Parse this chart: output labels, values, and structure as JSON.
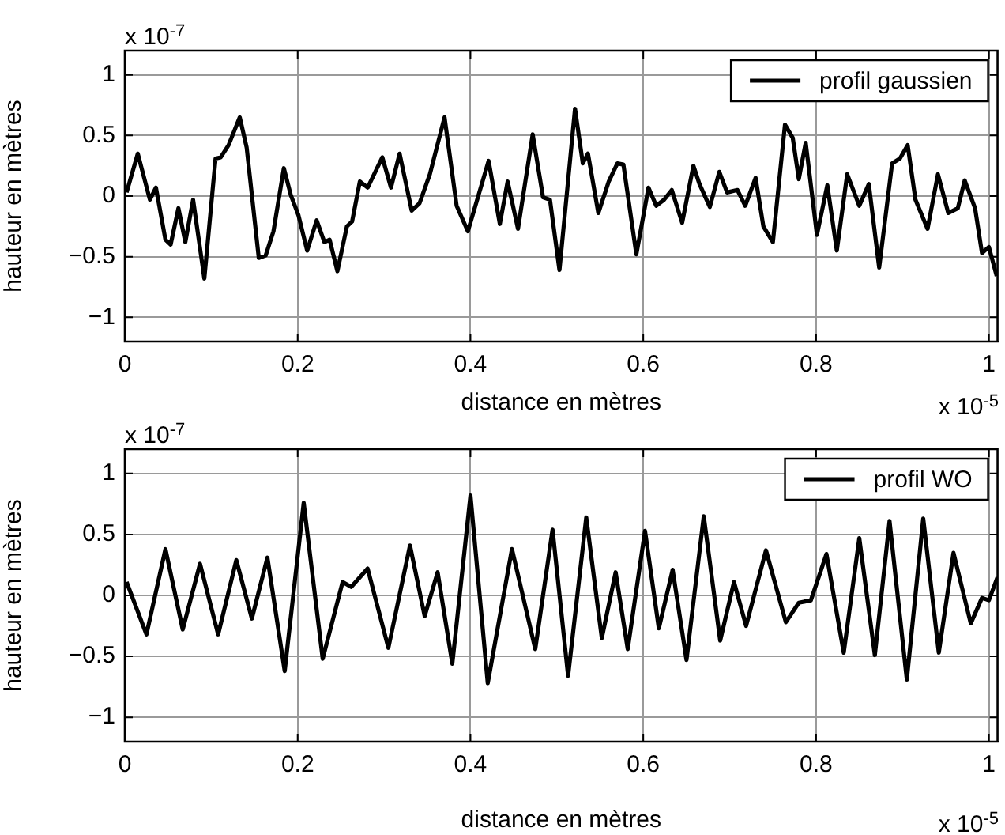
{
  "chart_data": [
    {
      "type": "line",
      "xlabel": "distance en mètres",
      "ylabel": "hauteur en mètres",
      "xlim": [
        0,
        1.01
      ],
      "ylim": [
        -1.2,
        1.2
      ],
      "xticks": [
        0,
        0.2,
        0.4,
        0.6,
        0.8,
        1
      ],
      "yticks": [
        -1,
        -0.5,
        0,
        0.5,
        1
      ],
      "grid": true,
      "legend": "top right",
      "line_style": "solid",
      "marker": "none",
      "annotations": [
        "x 10$^{-7}$",
        "x 10$^{-5}$"
      ],
      "series": [
        {
          "name": "profil gaussien",
          "color": "#000000",
          "x": [
            0.002,
            0.015,
            0.029,
            0.036,
            0.047,
            0.053,
            0.062,
            0.07,
            0.079,
            0.092,
            0.105,
            0.111,
            0.12,
            0.133,
            0.141,
            0.155,
            0.163,
            0.172,
            0.184,
            0.192,
            0.201,
            0.211,
            0.222,
            0.231,
            0.237,
            0.246,
            0.257,
            0.263,
            0.272,
            0.281,
            0.298,
            0.308,
            0.318,
            0.332,
            0.341,
            0.353,
            0.37,
            0.384,
            0.397,
            0.421,
            0.434,
            0.443,
            0.455,
            0.472,
            0.484,
            0.492,
            0.503,
            0.521,
            0.53,
            0.536,
            0.548,
            0.56,
            0.57,
            0.577,
            0.592,
            0.606,
            0.615,
            0.624,
            0.633,
            0.645,
            0.658,
            0.665,
            0.677,
            0.688,
            0.697,
            0.709,
            0.718,
            0.73,
            0.739,
            0.75,
            0.764,
            0.773,
            0.78,
            0.788,
            0.801,
            0.813,
            0.824,
            0.836,
            0.85,
            0.861,
            0.873,
            0.888,
            0.897,
            0.906,
            0.915,
            0.929,
            0.941,
            0.953,
            0.964,
            0.972,
            0.984,
            0.992,
            1.0,
            1.009
          ],
          "values": [
            0.03,
            0.35,
            -0.03,
            0.07,
            -0.36,
            -0.4,
            -0.1,
            -0.38,
            -0.03,
            -0.68,
            0.31,
            0.32,
            0.42,
            0.65,
            0.4,
            -0.51,
            -0.49,
            -0.29,
            0.23,
            0.01,
            -0.16,
            -0.45,
            -0.2,
            -0.38,
            -0.36,
            -0.62,
            -0.25,
            -0.21,
            0.12,
            0.07,
            0.32,
            0.07,
            0.35,
            -0.12,
            -0.06,
            0.18,
            0.65,
            -0.08,
            -0.29,
            0.29,
            -0.23,
            0.12,
            -0.27,
            0.51,
            -0.01,
            -0.03,
            -0.61,
            0.72,
            0.27,
            0.35,
            -0.14,
            0.12,
            0.27,
            0.26,
            -0.48,
            0.07,
            -0.08,
            -0.03,
            0.05,
            -0.22,
            0.25,
            0.1,
            -0.09,
            0.2,
            0.03,
            0.05,
            -0.08,
            0.15,
            -0.25,
            -0.38,
            0.59,
            0.48,
            0.14,
            0.44,
            -0.32,
            0.09,
            -0.45,
            0.18,
            -0.08,
            0.1,
            -0.59,
            0.27,
            0.31,
            0.42,
            -0.03,
            -0.27,
            0.18,
            -0.14,
            -0.1,
            0.13,
            -0.1,
            -0.47,
            -0.42,
            -0.66
          ]
        }
      ]
    },
    {
      "type": "line",
      "xlabel": "distance en mètres",
      "ylabel": "hauteur en mètres",
      "xlim": [
        0,
        1.01
      ],
      "ylim": [
        -1.2,
        1.2
      ],
      "xticks": [
        0,
        0.2,
        0.4,
        0.6,
        0.8,
        1
      ],
      "yticks": [
        -1,
        -0.5,
        0,
        0.5,
        1
      ],
      "grid": true,
      "legend": "top right",
      "line_style": "solid",
      "marker": "none",
      "annotations": [
        "x 10$^{-7}$",
        "x 10$^{-5}$"
      ],
      "series": [
        {
          "name": "profil WO",
          "color": "#000000",
          "x": [
            0.002,
            0.025,
            0.047,
            0.067,
            0.087,
            0.108,
            0.129,
            0.147,
            0.165,
            0.185,
            0.207,
            0.229,
            0.252,
            0.262,
            0.281,
            0.305,
            0.33,
            0.347,
            0.362,
            0.379,
            0.4,
            0.42,
            0.448,
            0.475,
            0.495,
            0.513,
            0.534,
            0.552,
            0.568,
            0.582,
            0.602,
            0.618,
            0.634,
            0.65,
            0.67,
            0.689,
            0.705,
            0.719,
            0.742,
            0.765,
            0.78,
            0.794,
            0.812,
            0.832,
            0.85,
            0.868,
            0.885,
            0.905,
            0.924,
            0.942,
            0.959,
            0.979,
            0.992,
            1.0,
            1.01
          ],
          "values": [
            0.11,
            -0.32,
            0.38,
            -0.28,
            0.26,
            -0.32,
            0.29,
            -0.19,
            0.31,
            -0.62,
            0.76,
            -0.52,
            0.11,
            0.07,
            0.22,
            -0.43,
            0.41,
            -0.17,
            0.19,
            -0.56,
            0.82,
            -0.72,
            0.38,
            -0.44,
            0.54,
            -0.66,
            0.64,
            -0.35,
            0.19,
            -0.44,
            0.53,
            -0.27,
            0.21,
            -0.53,
            0.65,
            -0.37,
            0.11,
            -0.25,
            0.37,
            -0.22,
            -0.06,
            -0.04,
            0.34,
            -0.47,
            0.47,
            -0.49,
            0.61,
            -0.69,
            0.63,
            -0.47,
            0.35,
            -0.23,
            -0.02,
            -0.04,
            0.15
          ]
        }
      ]
    }
  ]
}
